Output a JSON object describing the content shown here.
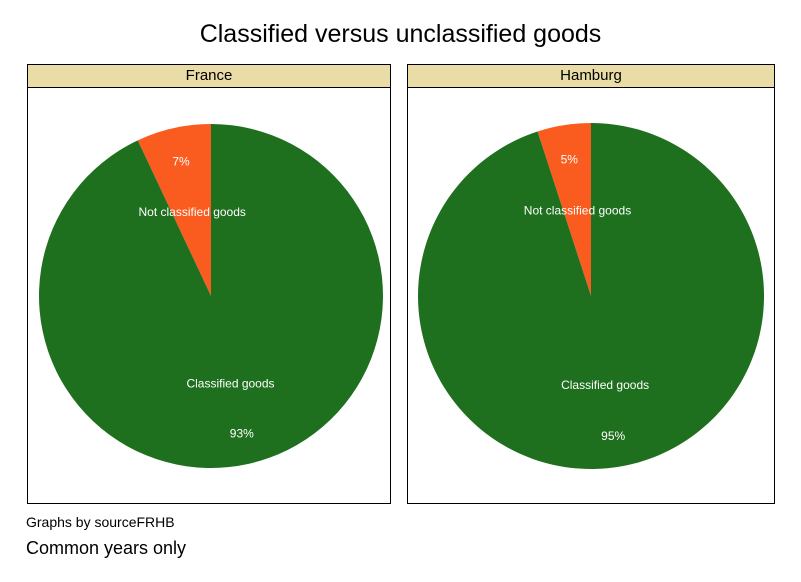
{
  "chart_data": {
    "type": "pie",
    "title": "Classified versus unclassified goods",
    "colors": {
      "Classified goods": "#1e6f1e",
      "Not classified goods": "#fa5b1f"
    },
    "panels": [
      {
        "name": "France",
        "slices": [
          {
            "label": "Not classified goods",
            "value": 7,
            "pct_label": "7%"
          },
          {
            "label": "Classified goods",
            "value": 93,
            "pct_label": "93%"
          }
        ]
      },
      {
        "name": "Hamburg",
        "slices": [
          {
            "label": "Not classified goods",
            "value": 5,
            "pct_label": "5%"
          },
          {
            "label": "Classified goods",
            "value": 95,
            "pct_label": "95%"
          }
        ]
      }
    ]
  },
  "notes": {
    "source": "Graphs by sourceFRHB",
    "caption": "Common years only"
  }
}
